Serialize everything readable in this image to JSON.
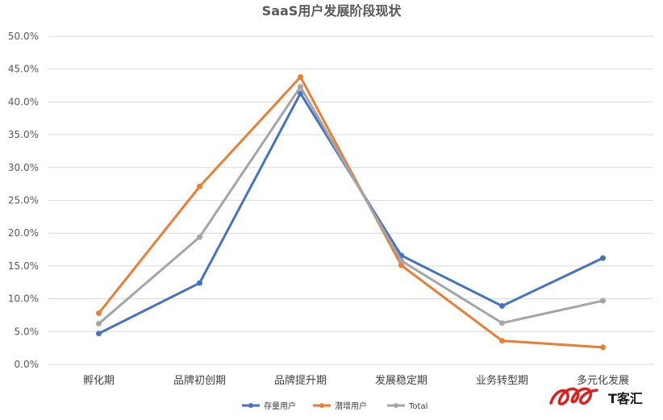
{
  "chart_data": {
    "type": "line",
    "title": "SaaS用户发展阶段现状",
    "xlabel": "",
    "ylabel": "",
    "categories": [
      "孵化期",
      "品牌初创期",
      "品牌提升期",
      "发展稳定期",
      "业务转型期",
      "多元化发展"
    ],
    "ylim": [
      0,
      0.5
    ],
    "yticks": [
      "0.0%",
      "5.0%",
      "10.0%",
      "15.0%",
      "20.0%",
      "25.0%",
      "30.0%",
      "35.0%",
      "40.0%",
      "45.0%",
      "50.0%"
    ],
    "grid": true,
    "legend_position": "bottom",
    "series": [
      {
        "name": "存量用户",
        "color": "#4472c4",
        "values": [
          0.047,
          0.124,
          0.413,
          0.166,
          0.089,
          0.162
        ]
      },
      {
        "name": "潜增用户",
        "color": "#ed7d31",
        "values": [
          0.078,
          0.271,
          0.438,
          0.151,
          0.036,
          0.026
        ]
      },
      {
        "name": "Total",
        "color": "#a5a5a5",
        "values": [
          0.062,
          0.194,
          0.423,
          0.158,
          0.063,
          0.097
        ]
      }
    ]
  },
  "watermark": {
    "text": "T客汇",
    "color": "#e02020"
  }
}
